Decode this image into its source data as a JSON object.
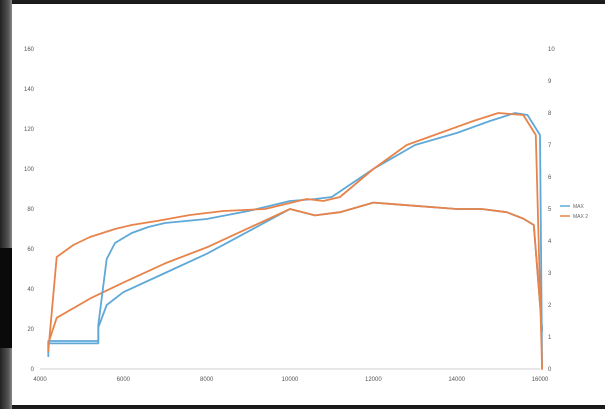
{
  "chart_data": {
    "type": "line",
    "title": "",
    "xlabel": "",
    "ylabel": "",
    "y2label": "",
    "xlim": [
      4000,
      16000
    ],
    "ylim": [
      0,
      160
    ],
    "y2lim": [
      0,
      10
    ],
    "grid": false,
    "legend_position": "right",
    "x_ticks": [
      "4000",
      "6000",
      "8000",
      "10000",
      "12000",
      "14000",
      "16000"
    ],
    "y_ticks": [
      "0",
      "20",
      "40",
      "60",
      "80",
      "100",
      "120",
      "140",
      "160"
    ],
    "y2_ticks": [
      "0",
      "1",
      "2",
      "3",
      "4",
      "5",
      "6",
      "7",
      "8",
      "9",
      "10"
    ],
    "series": [
      {
        "name": "MAX",
        "color": "#5fa8d8",
        "x": [
          4200,
          4200,
          5400,
          5400,
          5600,
          5800,
          6200,
          6600,
          7000,
          8000,
          9000,
          10000,
          10600,
          11000,
          12000,
          13000,
          14000,
          14800,
          15400,
          15700,
          16000,
          16050
        ],
        "y": [
          9,
          14,
          14,
          22,
          55,
          63,
          68,
          71,
          73,
          75,
          79,
          84,
          85,
          86,
          100,
          112,
          118,
          124,
          128,
          127,
          117,
          0
        ]
      },
      {
        "name": "MAX 2",
        "color": "#e8834a",
        "x": [
          4200,
          4400,
          4800,
          5200,
          5800,
          6200,
          6800,
          7600,
          8400,
          9400,
          10000,
          10400,
          10800,
          11200,
          12000,
          12800,
          13600,
          14400,
          15000,
          15600,
          15900,
          16050
        ],
        "y": [
          9,
          56,
          62,
          66,
          70,
          72,
          74,
          77,
          79,
          80,
          83,
          85,
          84,
          86,
          100,
          112,
          118,
          124,
          128,
          127,
          117,
          0
        ]
      }
    ],
    "series_y2": [
      {
        "name": "MAX",
        "color": "#5fa8d8",
        "x": [
          4200,
          4200,
          5400,
          5400,
          5600,
          6000,
          7000,
          8000,
          9000,
          10000,
          10600,
          11200,
          12000,
          13000,
          14000,
          14600,
          15200,
          15600,
          15850,
          16050
        ],
        "y": [
          0.4,
          0.8,
          0.8,
          1.3,
          2.0,
          2.4,
          3.0,
          3.6,
          4.3,
          5.0,
          4.8,
          4.9,
          5.2,
          5.1,
          5.0,
          5.0,
          4.9,
          4.7,
          4.5,
          1.2
        ]
      },
      {
        "name": "MAX 2",
        "color": "#e8834a",
        "x": [
          4200,
          4400,
          5200,
          6000,
          7000,
          8000,
          9000,
          10000,
          10600,
          11200,
          12000,
          13000,
          14000,
          14600,
          15200,
          15600,
          15850,
          16050
        ],
        "y": [
          0.8,
          1.6,
          2.2,
          2.7,
          3.3,
          3.8,
          4.4,
          5.0,
          4.8,
          4.9,
          5.2,
          5.1,
          5.0,
          5.0,
          4.9,
          4.7,
          4.5,
          1.2
        ]
      }
    ]
  }
}
